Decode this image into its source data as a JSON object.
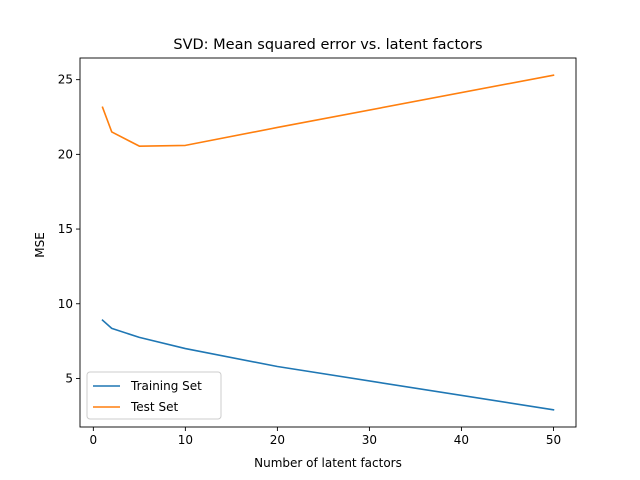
{
  "chart_data": {
    "type": "line",
    "title": "SVD: Mean squared error vs. latent factors",
    "xlabel": "Number of latent factors",
    "ylabel": "MSE",
    "xlim": [
      -1.45,
      52.45
    ],
    "ylim": [
      1.75,
      26.45
    ],
    "xticks": [
      0,
      10,
      20,
      30,
      40,
      50
    ],
    "yticks": [
      5,
      10,
      15,
      20,
      25
    ],
    "grid": false,
    "legend_position": "lower-left",
    "series": [
      {
        "name": "Training Set",
        "color": "#1f77b4",
        "x": [
          1,
          2,
          5,
          10,
          20,
          50
        ],
        "y": [
          8.9,
          8.35,
          7.75,
          7.0,
          5.8,
          2.9
        ]
      },
      {
        "name": "Test Set",
        "color": "#ff7f0e",
        "x": [
          1,
          2,
          5,
          10,
          20,
          50
        ],
        "y": [
          23.15,
          21.5,
          20.55,
          20.6,
          21.8,
          25.3
        ]
      }
    ]
  }
}
